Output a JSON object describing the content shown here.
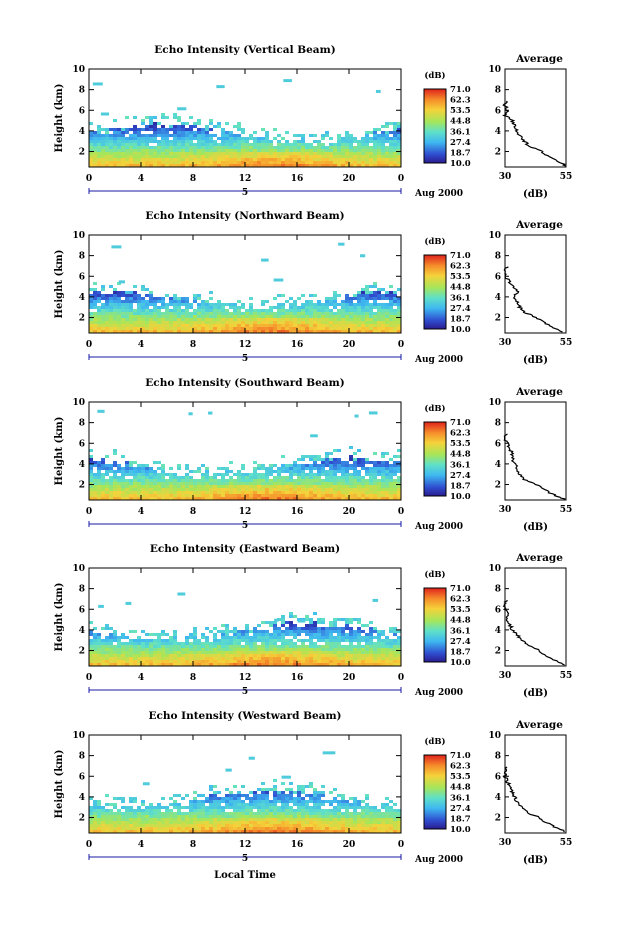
{
  "chart_data": {
    "type": "heatmap",
    "x_axis": {
      "ticks": [
        "0",
        "4",
        "8",
        "12",
        "16",
        "20",
        "0"
      ],
      "range": [
        0,
        24
      ],
      "date_label": "5",
      "month_year": "Aug 2000",
      "label": "Local Time"
    },
    "y_axis": {
      "label": "Height (km)",
      "ticks": [
        "2",
        "4",
        "6",
        "8",
        "10"
      ],
      "range": [
        0.5,
        10
      ]
    },
    "colorbar": {
      "unit": "(dB)",
      "ticks": [
        "71.0",
        "62.3",
        "53.5",
        "44.8",
        "36.1",
        "27.4",
        "18.7",
        "10.0"
      ],
      "range": [
        10.0,
        71.0
      ]
    },
    "average_profile": {
      "title": "Average",
      "xlabel": "(dB)",
      "xticks": [
        "30",
        "55"
      ],
      "xrange": [
        30,
        55
      ],
      "yticks": [
        "2",
        "4",
        "6",
        "8",
        "10"
      ]
    },
    "panels": [
      {
        "title": "Echo Intensity (Vertical Beam)",
        "average": {
          "height": [
            0.6,
            1.0,
            1.5,
            2.0,
            2.5,
            3.0,
            3.5,
            4.0,
            4.5,
            5.0,
            5.5,
            6.0,
            6.5,
            7.0
          ],
          "db": [
            55,
            52,
            48,
            45,
            40,
            38,
            36,
            35,
            34,
            33,
            30,
            31,
            30,
            31
          ]
        }
      },
      {
        "title": "Echo Intensity (Northward Beam)",
        "average": {
          "height": [
            0.6,
            1.0,
            1.5,
            2.0,
            2.5,
            3.0,
            3.5,
            4.0,
            4.5,
            5.0,
            5.5,
            6.0,
            6.5,
            7.0
          ],
          "db": [
            54,
            50,
            46,
            43,
            38,
            36,
            35,
            34,
            35,
            33,
            32,
            30,
            30,
            31
          ]
        }
      },
      {
        "title": "Echo Intensity (Southward Beam)",
        "average": {
          "height": [
            0.6,
            1.0,
            1.5,
            2.0,
            2.5,
            3.0,
            3.5,
            4.0,
            4.5,
            5.0,
            5.5,
            6.0,
            6.5,
            7.0
          ],
          "db": [
            54,
            50,
            46,
            43,
            38,
            36,
            35,
            34,
            33,
            33,
            32,
            31,
            30,
            31
          ]
        }
      },
      {
        "title": "Echo Intensity (Eastward Beam)",
        "average": {
          "height": [
            0.6,
            1.0,
            1.5,
            2.0,
            2.5,
            3.0,
            3.5,
            4.0,
            4.5,
            5.0,
            5.5,
            6.0,
            6.5,
            7.0
          ],
          "db": [
            55,
            51,
            47,
            44,
            40,
            37,
            35,
            33,
            32,
            31,
            31,
            30,
            30,
            31
          ]
        }
      },
      {
        "title": "Echo Intensity (Westward Beam)",
        "average": {
          "height": [
            0.6,
            1.0,
            1.5,
            2.0,
            2.5,
            3.0,
            3.5,
            4.0,
            4.5,
            5.0,
            5.5,
            6.0,
            6.5,
            7.0
          ],
          "db": [
            55,
            51,
            47,
            44,
            39,
            37,
            35,
            34,
            33,
            32,
            31,
            30,
            30,
            31
          ]
        }
      }
    ],
    "colors": {
      "low": "#2a3bbf",
      "mid_low": "#3fb8f0",
      "mid": "#a6e65a",
      "mid_high": "#f5d23a",
      "high": "#e63a1f",
      "axis": "#000000",
      "time_marker": "#1a1aa6"
    }
  }
}
